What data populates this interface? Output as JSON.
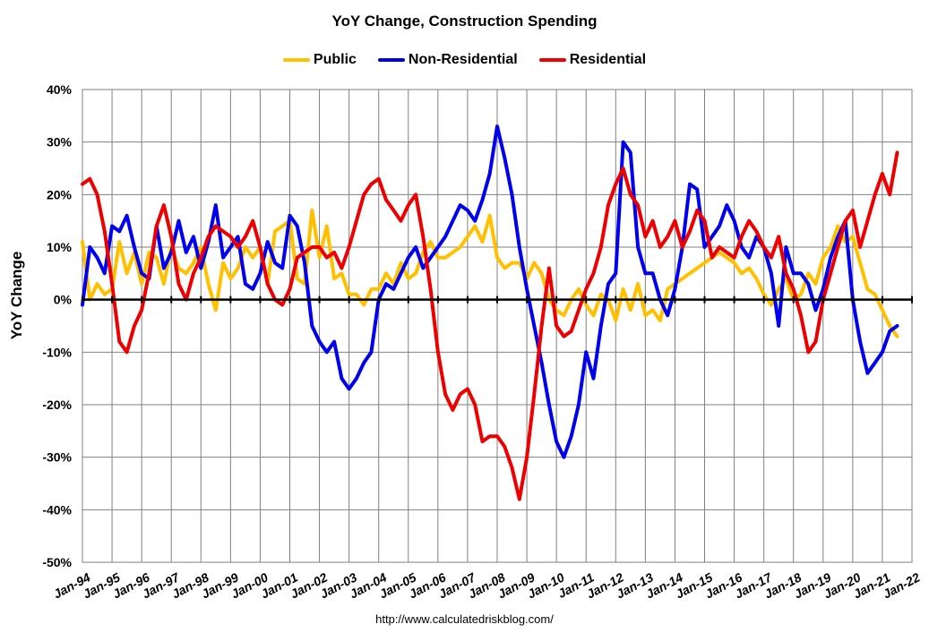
{
  "chart_data": {
    "type": "line",
    "title": "YoY Change,  Construction Spending",
    "ylabel": "YoY Change",
    "xlabel": "",
    "ylim": [
      -50,
      40
    ],
    "yticks": [
      40,
      30,
      20,
      10,
      0,
      -10,
      -20,
      -30,
      -40,
      -50
    ],
    "ytick_labels": [
      "40%",
      "30%",
      "20%",
      "10%",
      "0%",
      "-10%",
      "-20%",
      "-30%",
      "-40%",
      "-50%"
    ],
    "xlim": [
      1994,
      2022
    ],
    "xticks": [
      1994,
      1995,
      1996,
      1997,
      1998,
      1999,
      2000,
      2001,
      2002,
      2003,
      2004,
      2005,
      2006,
      2007,
      2008,
      2009,
      2010,
      2011,
      2012,
      2013,
      2014,
      2015,
      2016,
      2017,
      2018,
      2019,
      2020,
      2021,
      2022
    ],
    "xtick_labels": [
      "Jan-94",
      "Jan-95",
      "Jan-96",
      "Jan-97",
      "Jan-98",
      "Jan-99",
      "Jan-00",
      "Jan-01",
      "Jan-02",
      "Jan-03",
      "Jan-04",
      "Jan-05",
      "Jan-06",
      "Jan-07",
      "Jan-08",
      "Jan-09",
      "Jan-10",
      "Jan-11",
      "Jan-12",
      "Jan-13",
      "Jan-14",
      "Jan-15",
      "Jan-16",
      "Jan-17",
      "Jan-18",
      "Jan-19",
      "Jan-20",
      "Jan-21",
      "Jan-22"
    ],
    "grid": true,
    "legend_position": "top",
    "source_text": "http://www.calculatedriskblog.com/",
    "series": [
      {
        "name": "Public",
        "color": "#FFC000",
        "x": [
          1994.0,
          1994.25,
          1994.5,
          1994.75,
          1995.0,
          1995.25,
          1995.5,
          1995.75,
          1996.0,
          1996.25,
          1996.5,
          1996.75,
          1997.0,
          1997.25,
          1997.5,
          1997.75,
          1998.0,
          1998.25,
          1998.5,
          1998.75,
          1999.0,
          1999.25,
          1999.5,
          1999.75,
          2000.0,
          2000.25,
          2000.5,
          2000.75,
          2001.0,
          2001.25,
          2001.5,
          2001.75,
          2002.0,
          2002.25,
          2002.5,
          2002.75,
          2003.0,
          2003.25,
          2003.5,
          2003.75,
          2004.0,
          2004.25,
          2004.5,
          2004.75,
          2005.0,
          2005.25,
          2005.5,
          2005.75,
          2006.0,
          2006.25,
          2006.5,
          2006.75,
          2007.0,
          2007.25,
          2007.5,
          2007.75,
          2008.0,
          2008.25,
          2008.5,
          2008.75,
          2009.0,
          2009.25,
          2009.5,
          2009.75,
          2010.0,
          2010.25,
          2010.5,
          2010.75,
          2011.0,
          2011.25,
          2011.5,
          2011.75,
          2012.0,
          2012.25,
          2012.5,
          2012.75,
          2013.0,
          2013.25,
          2013.5,
          2013.75,
          2014.0,
          2014.25,
          2014.5,
          2014.75,
          2015.0,
          2015.25,
          2015.5,
          2015.75,
          2016.0,
          2016.25,
          2016.5,
          2016.75,
          2017.0,
          2017.25,
          2017.5,
          2017.75,
          2018.0,
          2018.25,
          2018.5,
          2018.75,
          2019.0,
          2019.25,
          2019.5,
          2019.75,
          2020.0,
          2020.25,
          2020.5,
          2020.75,
          2021.0,
          2021.25,
          2021.5
        ],
        "values": [
          11,
          0,
          3,
          1,
          2,
          11,
          5,
          9,
          3,
          9,
          8,
          3,
          10,
          6,
          5,
          7,
          10,
          3,
          -2,
          7,
          4,
          6,
          10,
          8,
          10,
          3,
          13,
          14,
          15,
          4,
          3,
          17,
          8,
          14,
          4,
          5,
          1,
          1,
          -1,
          2,
          2,
          5,
          3,
          7,
          4,
          5,
          9,
          11,
          8,
          8,
          9,
          10,
          12,
          14,
          11,
          16,
          8,
          6,
          7,
          7,
          4,
          7,
          5,
          0,
          -2,
          -3,
          0,
          2,
          -1,
          -3,
          1,
          0,
          -4,
          2,
          -2,
          3,
          -3,
          -2,
          -4,
          2,
          3,
          4,
          5,
          6,
          7,
          8,
          9,
          8,
          7,
          5,
          6,
          4,
          1,
          -1,
          2,
          4,
          0,
          1,
          5,
          3,
          8,
          10,
          14,
          11,
          12,
          7,
          2,
          1,
          -2,
          -5,
          -7
        ]
      },
      {
        "name": "Non-Residential",
        "color": "#0000EE",
        "x": [
          1994.0,
          1994.25,
          1994.5,
          1994.75,
          1995.0,
          1995.25,
          1995.5,
          1995.75,
          1996.0,
          1996.25,
          1996.5,
          1996.75,
          1997.0,
          1997.25,
          1997.5,
          1997.75,
          1998.0,
          1998.25,
          1998.5,
          1998.75,
          1999.0,
          1999.25,
          1999.5,
          1999.75,
          2000.0,
          2000.25,
          2000.5,
          2000.75,
          2001.0,
          2001.25,
          2001.5,
          2001.75,
          2002.0,
          2002.25,
          2002.5,
          2002.75,
          2003.0,
          2003.25,
          2003.5,
          2003.75,
          2004.0,
          2004.25,
          2004.5,
          2004.75,
          2005.0,
          2005.25,
          2005.5,
          2005.75,
          2006.0,
          2006.25,
          2006.5,
          2006.75,
          2007.0,
          2007.25,
          2007.5,
          2007.75,
          2008.0,
          2008.25,
          2008.5,
          2008.75,
          2009.0,
          2009.25,
          2009.5,
          2009.75,
          2010.0,
          2010.25,
          2010.5,
          2010.75,
          2011.0,
          2011.25,
          2011.5,
          2011.75,
          2012.0,
          2012.25,
          2012.5,
          2012.75,
          2013.0,
          2013.25,
          2013.5,
          2013.75,
          2014.0,
          2014.25,
          2014.5,
          2014.75,
          2015.0,
          2015.25,
          2015.5,
          2015.75,
          2016.0,
          2016.25,
          2016.5,
          2016.75,
          2017.0,
          2017.25,
          2017.5,
          2017.75,
          2018.0,
          2018.25,
          2018.5,
          2018.75,
          2019.0,
          2019.25,
          2019.5,
          2019.75,
          2020.0,
          2020.25,
          2020.5,
          2020.75,
          2021.0,
          2021.25,
          2021.5
        ],
        "values": [
          -1,
          10,
          8,
          5,
          14,
          13,
          16,
          10,
          5,
          4,
          14,
          6,
          9,
          15,
          9,
          12,
          6,
          11,
          18,
          8,
          10,
          12,
          3,
          2,
          5,
          11,
          7,
          6,
          16,
          14,
          7,
          -5,
          -8,
          -10,
          -8,
          -15,
          -17,
          -15,
          -12,
          -10,
          0,
          3,
          2,
          5,
          8,
          10,
          6,
          8,
          10,
          12,
          15,
          18,
          17,
          15,
          19,
          24,
          33,
          27,
          20,
          10,
          2,
          -5,
          -12,
          -20,
          -27,
          -30,
          -26,
          -20,
          -10,
          -15,
          -5,
          3,
          5,
          30,
          28,
          10,
          5,
          5,
          0,
          -3,
          2,
          10,
          22,
          21,
          10,
          12,
          14,
          18,
          15,
          10,
          8,
          12,
          10,
          5,
          -5,
          10,
          5,
          5,
          3,
          -2,
          2,
          8,
          12,
          15,
          0,
          -8,
          -14,
          -12,
          -10,
          -6,
          -5
        ]
      },
      {
        "name": "Residential",
        "color": "#EE0000",
        "x": [
          1994.0,
          1994.25,
          1994.5,
          1994.75,
          1995.0,
          1995.25,
          1995.5,
          1995.75,
          1996.0,
          1996.25,
          1996.5,
          1996.75,
          1997.0,
          1997.25,
          1997.5,
          1997.75,
          1998.0,
          1998.25,
          1998.5,
          1998.75,
          1999.0,
          1999.25,
          1999.5,
          1999.75,
          2000.0,
          2000.25,
          2000.5,
          2000.75,
          2001.0,
          2001.25,
          2001.5,
          2001.75,
          2002.0,
          2002.25,
          2002.5,
          2002.75,
          2003.0,
          2003.25,
          2003.5,
          2003.75,
          2004.0,
          2004.25,
          2004.5,
          2004.75,
          2005.0,
          2005.25,
          2005.5,
          2005.75,
          2006.0,
          2006.25,
          2006.5,
          2006.75,
          2007.0,
          2007.25,
          2007.5,
          2007.75,
          2008.0,
          2008.25,
          2008.5,
          2008.75,
          2009.0,
          2009.25,
          2009.5,
          2009.75,
          2010.0,
          2010.25,
          2010.5,
          2010.75,
          2011.0,
          2011.25,
          2011.5,
          2011.75,
          2012.0,
          2012.25,
          2012.5,
          2012.75,
          2013.0,
          2013.25,
          2013.5,
          2013.75,
          2014.0,
          2014.25,
          2014.5,
          2014.75,
          2015.0,
          2015.25,
          2015.5,
          2015.75,
          2016.0,
          2016.25,
          2016.5,
          2016.75,
          2017.0,
          2017.25,
          2017.5,
          2017.75,
          2018.0,
          2018.25,
          2018.5,
          2018.75,
          2019.0,
          2019.25,
          2019.5,
          2019.75,
          2020.0,
          2020.25,
          2020.5,
          2020.75,
          2021.0,
          2021.25,
          2021.5
        ],
        "values": [
          22,
          23,
          20,
          13,
          3,
          -8,
          -10,
          -5,
          -2,
          5,
          14,
          18,
          12,
          3,
          0,
          5,
          8,
          12,
          14,
          13,
          12,
          10,
          12,
          15,
          10,
          3,
          0,
          -1,
          2,
          8,
          9,
          10,
          10,
          8,
          9,
          6,
          10,
          15,
          20,
          22,
          23,
          19,
          17,
          15,
          18,
          20,
          12,
          2,
          -10,
          -18,
          -21,
          -18,
          -17,
          -20,
          -27,
          -26,
          -26,
          -28,
          -32,
          -38,
          -30,
          -18,
          -5,
          6,
          -5,
          -7,
          -6,
          -2,
          2,
          5,
          10,
          18,
          22,
          25,
          20,
          18,
          12,
          15,
          10,
          12,
          15,
          10,
          13,
          17,
          15,
          8,
          10,
          9,
          8,
          12,
          15,
          13,
          10,
          8,
          12,
          5,
          2,
          -3,
          -10,
          -8,
          0,
          5,
          10,
          15,
          17,
          10,
          15,
          20,
          24,
          20,
          28
        ]
      }
    ]
  }
}
